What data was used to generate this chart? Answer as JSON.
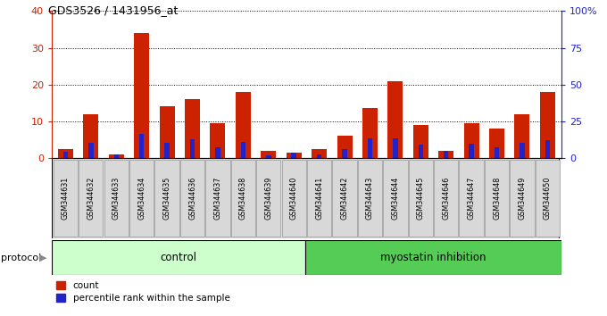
{
  "title": "GDS3526 / 1431956_at",
  "samples": [
    "GSM344631",
    "GSM344632",
    "GSM344633",
    "GSM344634",
    "GSM344635",
    "GSM344636",
    "GSM344637",
    "GSM344638",
    "GSM344639",
    "GSM344640",
    "GSM344641",
    "GSM344642",
    "GSM344643",
    "GSM344644",
    "GSM344645",
    "GSM344646",
    "GSM344647",
    "GSM344648",
    "GSM344649",
    "GSM344650"
  ],
  "count": [
    2.5,
    12,
    1,
    34,
    14,
    16,
    9.5,
    18,
    2,
    1.5,
    2.5,
    6,
    13.5,
    21,
    9,
    2,
    9.5,
    8,
    12,
    18
  ],
  "percentile": [
    4.5,
    10.5,
    2.5,
    16.5,
    10.5,
    12.5,
    7.5,
    11,
    2,
    3.5,
    2.5,
    6,
    13.5,
    13.5,
    9,
    5,
    9.5,
    7,
    10.5,
    12
  ],
  "red_color": "#cc2200",
  "blue_color": "#2222cc",
  "control_color": "#ccffcc",
  "myostatin_color": "#55cc55",
  "control_label": "control",
  "myostatin_label": "myostatin inhibition",
  "protocol_label": "protocol",
  "legend_count": "count",
  "legend_percentile": "percentile rank within the sample",
  "left_ylim": [
    0,
    40
  ],
  "right_ylim": [
    0,
    100
  ],
  "left_yticks": [
    0,
    10,
    20,
    30,
    40
  ],
  "right_yticks": [
    0,
    25,
    50,
    75,
    100
  ],
  "right_yticklabels": [
    "0",
    "25",
    "50",
    "75",
    "100%"
  ],
  "n_control": 10,
  "sample_box_color": "#d8d8d8",
  "sample_box_edge": "#888888"
}
